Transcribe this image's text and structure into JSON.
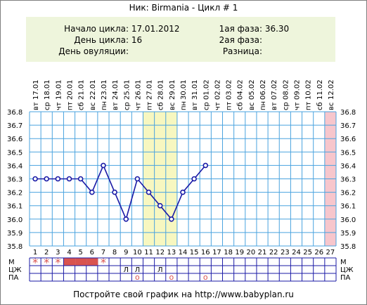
{
  "header": {
    "title": "Ник: Birmania - Цикл # 1"
  },
  "info": {
    "cycle_start_label": "Начало цикла:",
    "cycle_start_value": "17.01.2012",
    "cycle_day_label": "День цикла:",
    "cycle_day_value": "16",
    "ovulation_day_label": "День овуляции:",
    "ovulation_day_value": "",
    "phase1_label": "1ая фаза:",
    "phase1_value": "36.30",
    "phase2_label": "2ая фаза:",
    "phase2_value": "",
    "difference_label": "Разница:",
    "difference_value": ""
  },
  "footer": {
    "text": "Постройте свой график на http://www.babyplan.ru"
  },
  "colors": {
    "grid": "#4aa3df",
    "line": "#1a1aa6",
    "marker": "#1a1aa6",
    "highlight_fertile": "#f7f7c0",
    "highlight_last": "#f7c6cc",
    "menstruation": "#d9534f",
    "info_bg": "#eef5dc"
  },
  "chart_data": {
    "type": "line",
    "x_dates": [
      "17.01",
      "18.01",
      "19.01",
      "20.01",
      "21.01",
      "22.01",
      "23.01",
      "24.01",
      "25.01",
      "26.01",
      "27.01",
      "28.01",
      "29.01",
      "30.01",
      "31.01",
      "01.02",
      "02.02",
      "03.02",
      "04.02",
      "05.02",
      "06.02",
      "07.02",
      "08.02",
      "09.02",
      "10.02",
      "11.02",
      "12.02"
    ],
    "x_weekdays": [
      "вт",
      "ср",
      "чт",
      "пт",
      "сб",
      "вс",
      "пн",
      "вт",
      "ср",
      "чт",
      "пт",
      "сб",
      "вс",
      "пн",
      "вт",
      "ср",
      "чт",
      "пт",
      "сб",
      "вс",
      "пн",
      "вт",
      "ср",
      "чт",
      "пт",
      "сб",
      "вс"
    ],
    "x_days": [
      1,
      2,
      3,
      4,
      5,
      6,
      7,
      8,
      9,
      10,
      11,
      12,
      13,
      14,
      15,
      16,
      17,
      18,
      19,
      20,
      21,
      22,
      23,
      24,
      25,
      26,
      27
    ],
    "y_ticks": [
      "36.8",
      "36.7",
      "36.6",
      "36.5",
      "36.4",
      "36.3",
      "36.2",
      "36.1",
      "36.0",
      "35.9",
      "35.8"
    ],
    "ylim": [
      35.8,
      36.8
    ],
    "series": [
      {
        "values": [
          36.3,
          36.3,
          36.3,
          36.3,
          36.3,
          36.2,
          36.4,
          36.2,
          36.0,
          36.3,
          36.2,
          36.1,
          36.0,
          36.2,
          36.3,
          36.4
        ]
      }
    ],
    "highlight_days_fertile": [
      11,
      12,
      13
    ],
    "highlight_days_last": [
      27
    ],
    "grid": true,
    "rows": {
      "labels_left": [
        "М",
        "ЦЖ",
        "ПА"
      ],
      "labels_right": [
        "М",
        "ЦЖ",
        "ПА"
      ],
      "m_stars": [
        1,
        2,
        3,
        7
      ],
      "m_filled": [
        4,
        5,
        6
      ],
      "m_star_symbol": "*",
      "czh_marks": [
        {
          "day": 9,
          "text": "Л"
        },
        {
          "day": 10,
          "text": "Л"
        },
        {
          "day": 12,
          "text": "Л"
        }
      ],
      "pa_marks": [
        {
          "day": 10,
          "text": "o"
        },
        {
          "day": 13,
          "text": "o"
        },
        {
          "day": 16,
          "text": "o"
        }
      ]
    }
  }
}
